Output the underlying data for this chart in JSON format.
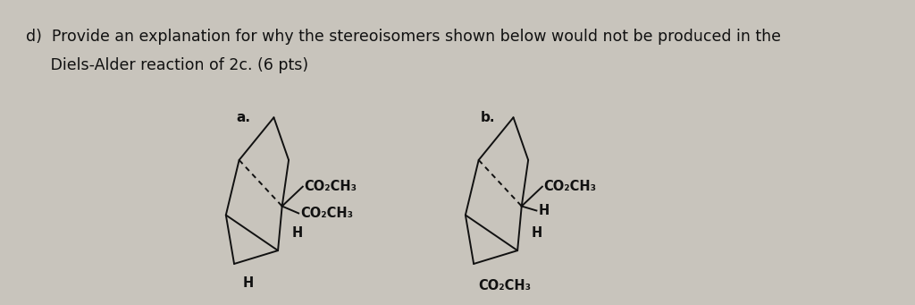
{
  "background_color": "#c8c4bc",
  "text_color": "#111111",
  "title_line1": "d)  Provide an explanation for why the stereoisomers shown below would not be produced in the",
  "title_line2": "     Diels-Alder reaction of 2c. (6 pts)",
  "label_a": "a.",
  "label_b": "b.",
  "font_size_title": 12.5,
  "font_size_label": 11,
  "font_size_chem": 10.5,
  "lw": 1.4
}
